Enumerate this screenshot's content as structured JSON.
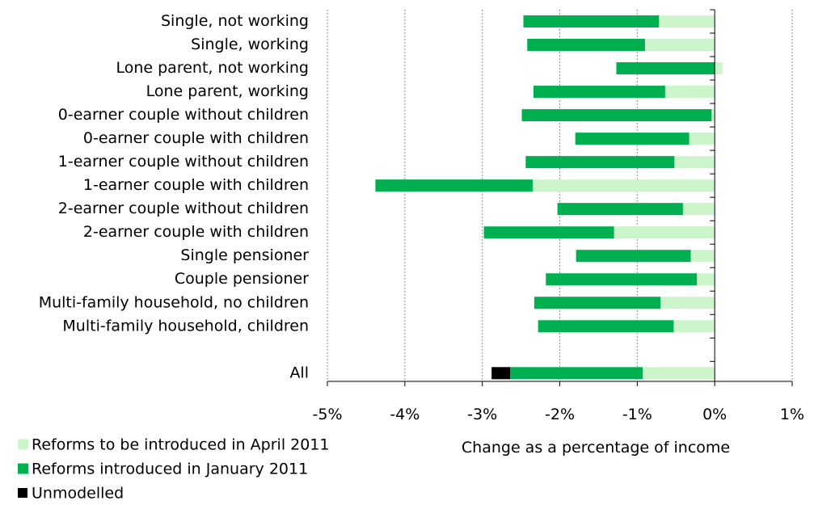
{
  "chart_data": {
    "type": "bar",
    "orientation": "horizontal",
    "stacked": true,
    "categories": [
      "Single, not working",
      "Single, working",
      "Lone parent, not working",
      "Lone parent, working",
      "0-earner couple without children",
      "0-earner couple with children",
      "1-earner couple without children",
      "1-earner couple with children",
      "2-earner couple without children",
      "2-earner couple with children",
      "Single pensioner",
      "Couple pensioner",
      "Multi-family household, no children",
      "Multi-family household, children",
      "",
      "All"
    ],
    "series": [
      {
        "name": "Reforms to be introduced in April 2011",
        "color": "#ccf5cc",
        "values": [
          -0.72,
          -0.9,
          0.1,
          -0.64,
          -0.04,
          -0.33,
          -0.52,
          -2.35,
          -0.41,
          -1.3,
          -0.31,
          -0.23,
          -0.7,
          -0.53,
          null,
          -0.93
        ]
      },
      {
        "name": "Reforms introduced in January 2011",
        "color": "#00b050",
        "values": [
          -1.75,
          -1.52,
          -1.27,
          -1.7,
          -2.45,
          -1.47,
          -1.92,
          -2.03,
          -1.62,
          -1.68,
          -1.48,
          -1.95,
          -1.63,
          -1.75,
          null,
          -1.71
        ]
      },
      {
        "name": "Unmodelled",
        "color": "#000000",
        "values": [
          0,
          0,
          0,
          0,
          0,
          0,
          0,
          0,
          0,
          0,
          0,
          0,
          0,
          0,
          null,
          -0.24
        ]
      }
    ],
    "xlim": [
      -5,
      1
    ],
    "xticks": [
      -5,
      -4,
      -3,
      -2,
      -1,
      0,
      1
    ],
    "xtick_labels": [
      "-5%",
      "-4%",
      "-3%",
      "-2%",
      "-1%",
      "0%",
      "1%"
    ],
    "xlabel": "Change as a percentage of income",
    "ylabel": "",
    "title": "",
    "grid": "vertical dashed",
    "legend_position": "bottom-left"
  }
}
